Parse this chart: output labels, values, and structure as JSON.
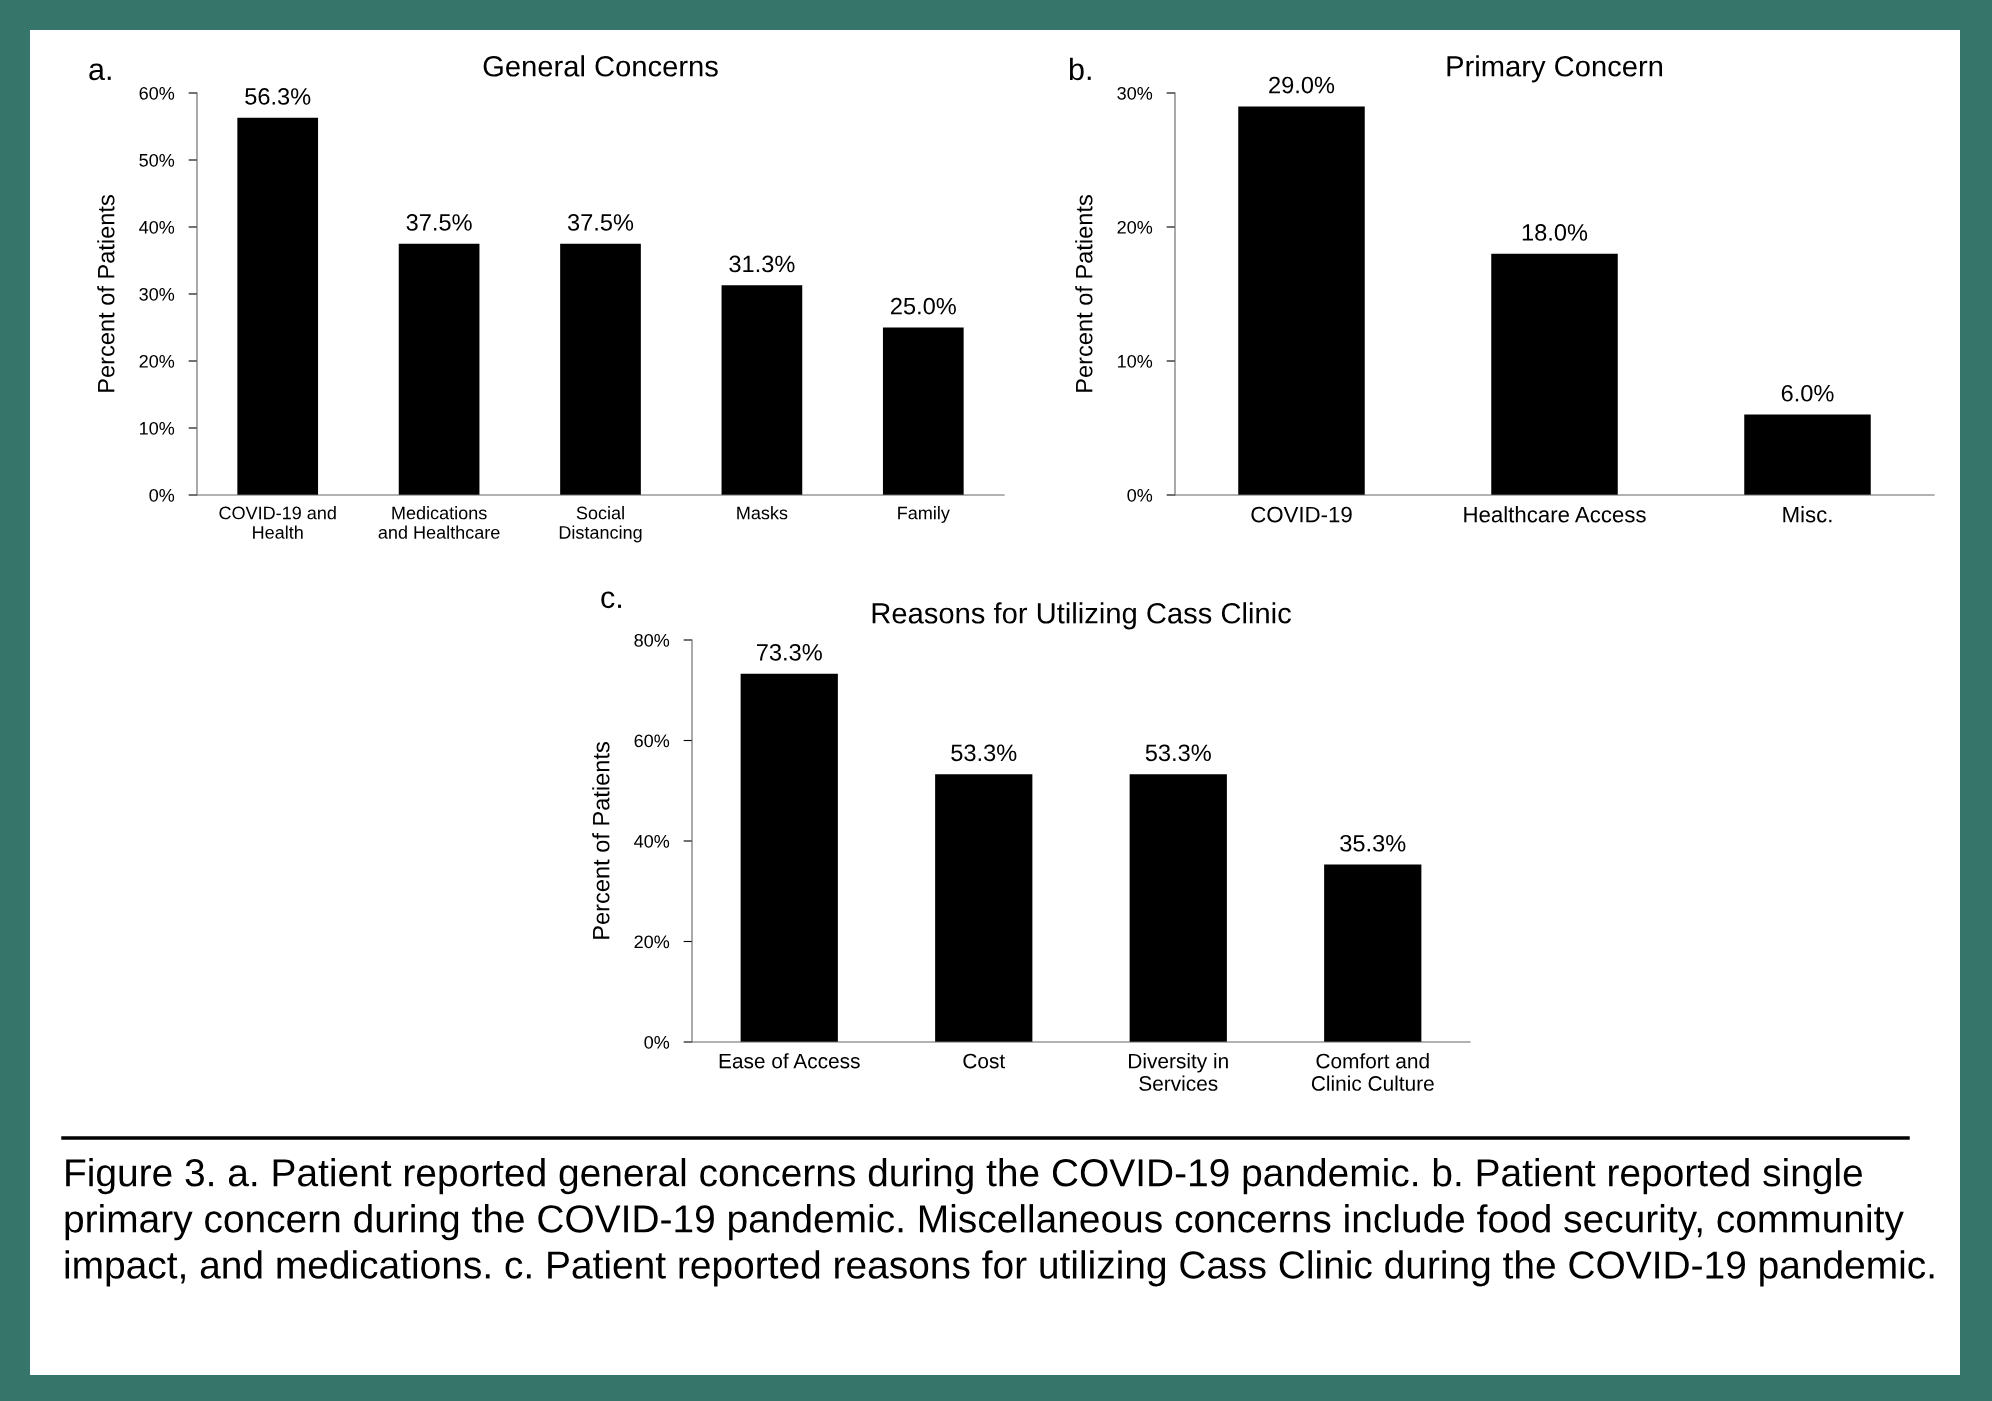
{
  "chart_data": [
    {
      "type": "bar",
      "title": "General Concerns",
      "ylabel": "Percent of Patients",
      "annotations": [
        "a."
      ],
      "categories": [
        "COVID-19 and\nHealth",
        "Medications\nand Healthcare",
        "Social\nDistancing",
        "Masks",
        "Family"
      ],
      "values": [
        56.3,
        37.5,
        37.5,
        31.3,
        25.0
      ],
      "color": "#000000",
      "value_labels": [
        "56.3%",
        "37.5%",
        "37.5%",
        "31.3%",
        "25.0%"
      ],
      "ylim": [
        0,
        60
      ],
      "yticks": [
        {
          "value": 0,
          "label": "0%"
        },
        {
          "value": 10,
          "label": "10%"
        },
        {
          "value": 20,
          "label": "20%"
        },
        {
          "value": 30,
          "label": "30%"
        },
        {
          "value": 40,
          "label": "40%"
        },
        {
          "value": 50,
          "label": "50%"
        },
        {
          "value": 60,
          "label": "60%"
        }
      ],
      "grid": false,
      "legend": false
    },
    {
      "type": "bar",
      "title": "Primary Concern",
      "ylabel": "Percent of Patients",
      "annotations": [
        "b."
      ],
      "categories": [
        "COVID-19",
        "Healthcare Access",
        "Misc."
      ],
      "values": [
        29.0,
        18.0,
        6.0
      ],
      "color": "#000000",
      "value_labels": [
        "29.0%",
        "18.0%",
        "6.0%"
      ],
      "ylim": [
        0,
        30
      ],
      "yticks": [
        {
          "value": 0,
          "label": "0%"
        },
        {
          "value": 10,
          "label": "10%"
        },
        {
          "value": 20,
          "label": "20%"
        },
        {
          "value": 30,
          "label": "30%"
        }
      ],
      "grid": false,
      "legend": false
    },
    {
      "type": "bar",
      "title": "Reasons for Utilizing Cass Clinic",
      "ylabel": "Percent of Patients",
      "annotations": [
        "c.",
        "Figure 3. a. Patient reported general concerns during the COVID-19 pandemic. b. Patient reported single primary concern during the COVID-19 pandemic. Miscellaneous concerns include food security, community impact, and medications. c. Patient reported reasons for utilizing Cass Clinic during the COVID-19 pandemic."
      ],
      "categories": [
        "Ease of Access",
        "Cost",
        "Diversity in\nServices",
        "Comfort and\nClinic Culture"
      ],
      "values": [
        73.3,
        53.3,
        53.3,
        35.3
      ],
      "color": "#000000",
      "value_labels": [
        "73.3%",
        "53.3%",
        "53.3%",
        "35.3%"
      ],
      "ylim": [
        0,
        80
      ],
      "yticks": [
        {
          "value": 0,
          "label": "0%"
        },
        {
          "value": 20,
          "label": "20%"
        },
        {
          "value": 40,
          "label": "40%"
        },
        {
          "value": 60,
          "label": "60%"
        },
        {
          "value": 80,
          "label": "80%"
        }
      ],
      "grid": false,
      "legend": false
    }
  ]
}
